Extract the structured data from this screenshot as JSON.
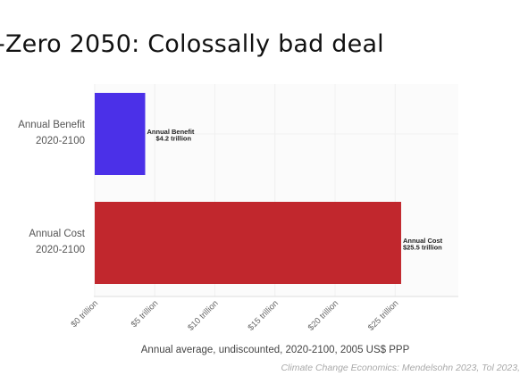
{
  "slide": {
    "title": "-Zero 2050: Colossally bad deal",
    "source": "Climate Change Economics: Mendelsohn 2023, Tol 2023,"
  },
  "chart_data": {
    "type": "bar",
    "orientation": "horizontal",
    "categories": [
      [
        "Annual Benefit",
        "2020-2100"
      ],
      [
        "Annual Cost",
        "2020-2100"
      ]
    ],
    "values": [
      4.2,
      25.5
    ],
    "colors": [
      "#4b30e8",
      "#c1272d"
    ],
    "data_labels": [
      [
        "Annual Benefit",
        "$4.2 trillion"
      ],
      [
        "Annual Cost",
        "$25.5 trillion"
      ]
    ],
    "x_ticks": [
      0,
      5,
      10,
      15,
      20,
      25
    ],
    "x_tick_labels": [
      "$0 trillion",
      "$5 trillion",
      "$10 trillion",
      "$15 trillion",
      "$20 trillion",
      "$25 trillion"
    ],
    "xlim": [
      0,
      30
    ],
    "xlabel": "Annual average, undiscounted, 2020-2100, 2005 US$ PPP",
    "grid": "vertical"
  }
}
